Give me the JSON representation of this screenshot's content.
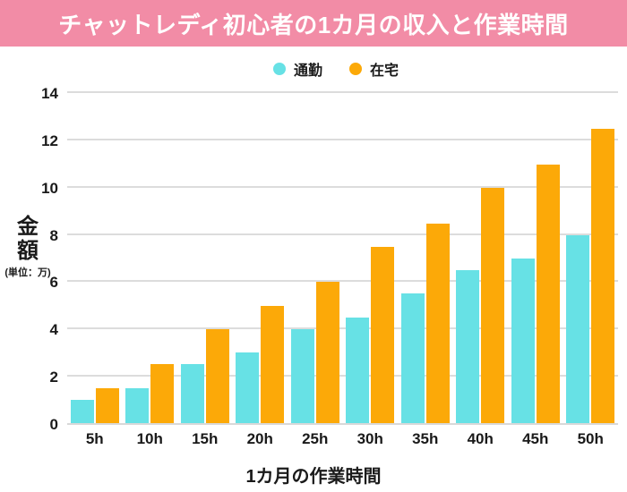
{
  "title": "チャットレディ初心者の1カ月の収入と作業時間",
  "colors": {
    "banner_bg": "#F28CA6",
    "banner_text": "#FFFFFF",
    "series_tsukin": "#67E1E5",
    "series_zaitaku": "#FCA908",
    "gridline": "#DCDCDC",
    "text": "#1A1A1A"
  },
  "legend": {
    "items": [
      {
        "label": "通勤",
        "color": "#67E1E5"
      },
      {
        "label": "在宅",
        "color": "#FCA908"
      }
    ]
  },
  "y_axis": {
    "title_line1": "金",
    "title_line2": "額",
    "unit": "(単位：万)",
    "ticks": [
      0,
      2,
      4,
      6,
      8,
      10,
      12,
      14
    ]
  },
  "x_axis": {
    "title": "1カ月の作業時間"
  },
  "chart_data": {
    "type": "bar",
    "title": "チャットレディ初心者の1カ月の収入と作業時間",
    "categories": [
      "5h",
      "10h",
      "15h",
      "20h",
      "25h",
      "30h",
      "35h",
      "40h",
      "45h",
      "50h"
    ],
    "series": [
      {
        "name": "通勤",
        "color": "#67E1E5",
        "values": [
          1,
          1.5,
          2.5,
          3,
          4,
          4.5,
          5.5,
          6.5,
          7,
          8
        ]
      },
      {
        "name": "在宅",
        "color": "#FCA908",
        "values": [
          1.5,
          2.5,
          4,
          5,
          6,
          7.5,
          8.5,
          10,
          11,
          12.5
        ]
      }
    ],
    "xlabel": "1カ月の作業時間",
    "ylabel": "金額（単位：万）",
    "ylim": [
      0,
      14
    ],
    "grid": true,
    "legend_position": "top-center"
  }
}
